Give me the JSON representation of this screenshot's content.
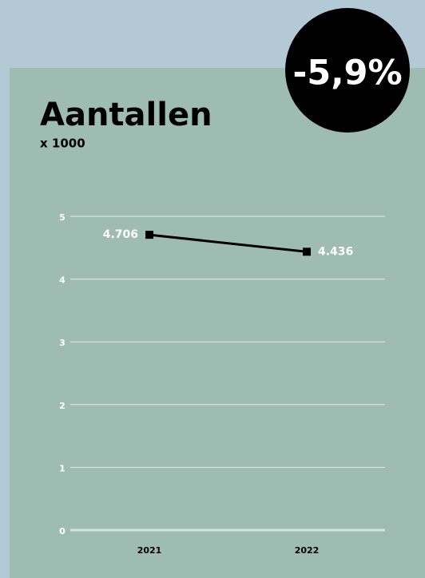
{
  "chart_data": {
    "type": "line",
    "title": "Aantallen",
    "subtitle": "x 1000",
    "annotation": "-5,9%",
    "categories": [
      "2021",
      "2022"
    ],
    "series": [
      {
        "name": "Aantallen",
        "color": "#000000",
        "values": [
          4.706,
          4.436
        ],
        "value_labels": [
          "4.706",
          "4.436"
        ]
      }
    ],
    "ylim": [
      0,
      5
    ],
    "yticks": [
      0,
      1,
      2,
      3,
      4,
      5
    ],
    "grid": true
  }
}
